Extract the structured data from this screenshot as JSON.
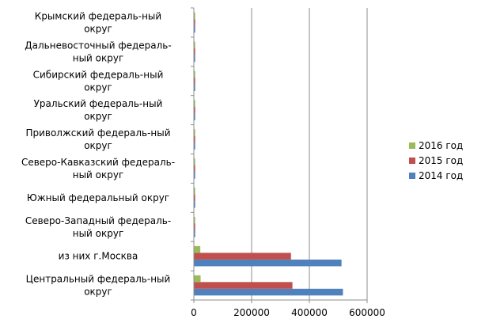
{
  "chart_data": {
    "type": "bar",
    "orientation": "horizontal",
    "categories": [
      [
        "Центральный федераль-ный",
        "округ"
      ],
      [
        "из них г.Москва"
      ],
      [
        "Северо-Западный федераль-",
        "ный округ"
      ],
      [
        "Южный федеральный округ"
      ],
      [
        "Северо-Кавказский федераль-",
        "ный округ"
      ],
      [
        "Приволжский федераль-ный",
        "округ"
      ],
      [
        "Уральский федераль-ный",
        "округ"
      ],
      [
        "Сибирский федераль-ный",
        "округ"
      ],
      [
        "Дальневосточный федераль-",
        "ный округ"
      ],
      [
        "Крымский федераль-ный",
        "округ"
      ]
    ],
    "series": [
      {
        "name": "2014 год",
        "color": "#4F81BD",
        "values": [
          515000,
          510000,
          1800,
          1500,
          800,
          2200,
          1200,
          1800,
          1000,
          300
        ]
      },
      {
        "name": "2015 год",
        "color": "#C0504D",
        "values": [
          340000,
          335000,
          2000,
          1600,
          900,
          2400,
          1300,
          2000,
          1100,
          2500
        ]
      },
      {
        "name": "2016 год",
        "color": "#9BBB59",
        "values": [
          22000,
          21000,
          300,
          250,
          150,
          400,
          200,
          300,
          150,
          200
        ]
      }
    ],
    "legend_order": [
      "2016 год",
      "2015 год",
      "2014 год"
    ],
    "xlim": [
      0,
      600000
    ],
    "xticks": [
      0,
      200000,
      400000,
      600000
    ],
    "xtick_labels": [
      "0",
      "200000",
      "400000",
      "600000"
    ],
    "grid": "vertical",
    "legend_position": "right",
    "title": "",
    "xlabel": "",
    "ylabel": ""
  }
}
